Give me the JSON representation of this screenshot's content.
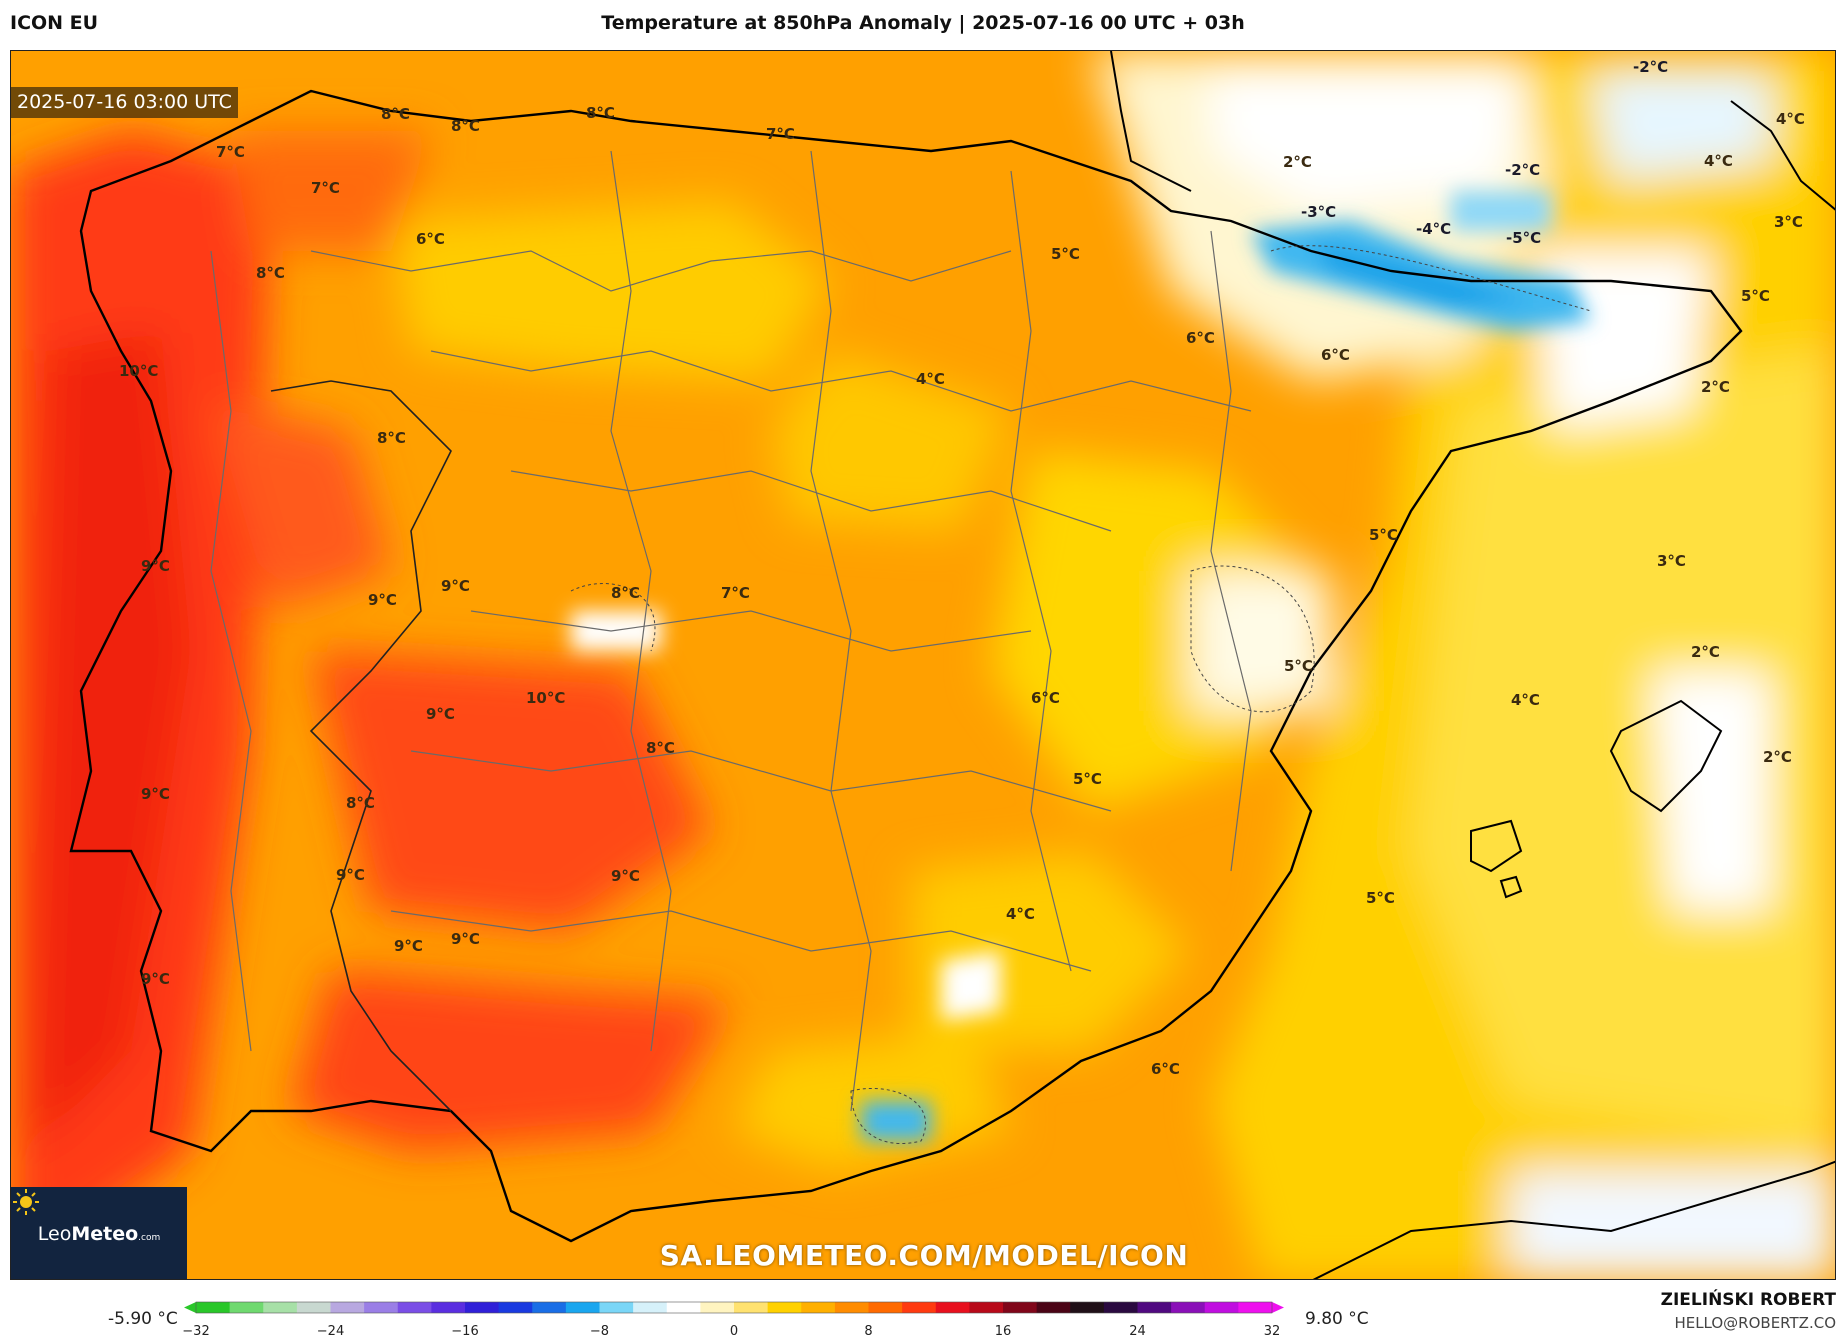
{
  "header": {
    "model": "ICON EU",
    "title": "Temperature at 850hPa Anomaly | 2025-07-16 00 UTC + 03h"
  },
  "map": {
    "timestamp": "2025-07-16 03:00 UTC",
    "watermark_url": "SA.LEOMETEO.COM/MODEL/ICON",
    "logo": {
      "brand_light": "Leo",
      "brand_bold": "Meteo",
      "suffix": ".com"
    },
    "labels": [
      "8°C",
      "8°C",
      "8°C",
      "7°C",
      "7°C",
      "7°C",
      "6°C",
      "8°C",
      "10°C",
      "8°C",
      "9°C",
      "9°C",
      "9°C",
      "8°C",
      "7°C",
      "10°C",
      "9°C",
      "8°C",
      "9°C",
      "8°C",
      "9°C",
      "9°C",
      "9°C",
      "9°C",
      "9°C",
      "5°C",
      "6°C",
      "6°C",
      "4°C",
      "5°C",
      "5°C",
      "6°C",
      "5°C",
      "4°C",
      "5°C",
      "2°C",
      "-3°C",
      "-4°C",
      "-5°C",
      "-2°C",
      "-2°C",
      "4°C",
      "4°C",
      "3°C",
      "5°C",
      "2°C",
      "3°C",
      "2°C",
      "4°C",
      "2°C",
      "6°C"
    ]
  },
  "colorbar": {
    "min_label": "-5.90 °C",
    "max_label": "9.80 °C",
    "ticks": [
      "−32",
      "−24",
      "−16",
      "−8",
      "0",
      "8",
      "16",
      "24",
      "32"
    ],
    "stops": [
      "#29c729",
      "#6fd96f",
      "#a7e0a7",
      "#c8d8d0",
      "#b8a8e0",
      "#9a7ee6",
      "#7a4ee6",
      "#5a2ee0",
      "#3020d8",
      "#1a3ae0",
      "#1a6ee6",
      "#1aa6ef",
      "#7ad6f7",
      "#d6f1fa",
      "#ffffff",
      "#fff4c0",
      "#ffe270",
      "#ffd100",
      "#ffb000",
      "#ff8c00",
      "#ff6a00",
      "#ff3a10",
      "#e8101e",
      "#b80a1a",
      "#80061a",
      "#4a0416",
      "#201018",
      "#2a0a40",
      "#500a80",
      "#8a10b8",
      "#c00ee0",
      "#ee10ee"
    ]
  },
  "credits": {
    "author": "ZIELIŃSKI ROBERT",
    "email": "HELLO@ROBERTZ.CO"
  }
}
